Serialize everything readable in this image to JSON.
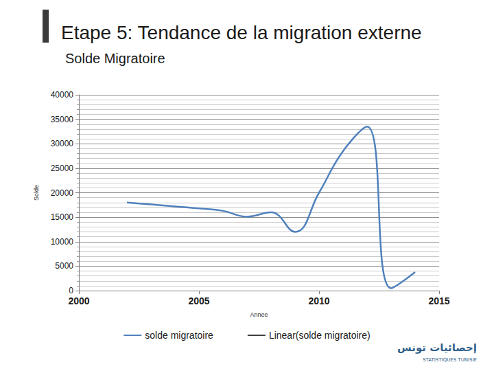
{
  "chart_data": {
    "type": "line",
    "title": "Etape 5: Tendance de la migration externe",
    "subtitle": "Solde Migratoire",
    "x_label": "Annee",
    "y_label": "Solde",
    "x": [
      2002,
      2003,
      2004,
      2005,
      2006,
      2007,
      2008,
      2009,
      2010,
      2011,
      2012,
      2013,
      2014
    ],
    "series": [
      {
        "name": "solde migratoire",
        "color": "#4f81bd",
        "line_style": "smooth",
        "values": [
          18000,
          17600,
          17200,
          16800,
          16300,
          15100,
          16000,
          12000,
          20000,
          28500,
          33500,
          500,
          3800
        ]
      },
      {
        "name": "Linear(solde migratoire)",
        "color": "#404040",
        "line_style": "solid",
        "values": [
          null,
          null,
          null,
          null,
          null,
          null,
          null,
          null,
          null,
          null,
          null,
          null,
          null
        ]
      }
    ],
    "xlim": [
      2000,
      2015
    ],
    "xticks": [
      2000,
      2005,
      2010,
      2015
    ],
    "ylim": [
      0,
      40000
    ],
    "yticks": [
      0,
      5000,
      10000,
      15000,
      20000,
      25000,
      30000,
      35000,
      40000
    ],
    "grid": true,
    "legend": "bottom",
    "annotations": [
      "إحصائيات تونس",
      "STATISTIQUES TUNISIE"
    ]
  }
}
